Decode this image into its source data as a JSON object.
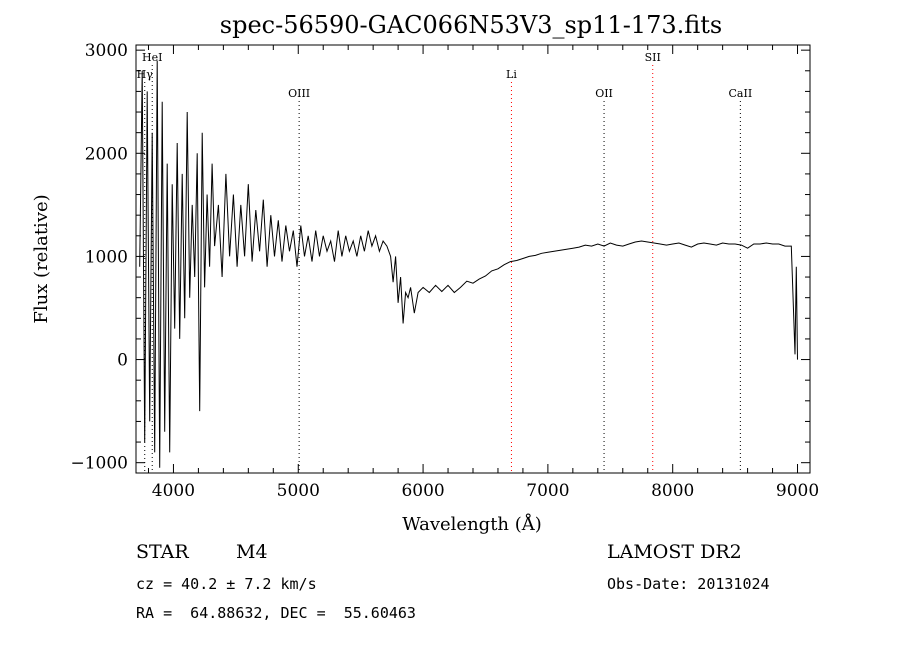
{
  "chart_data": {
    "type": "line",
    "title": "spec-56590-GAC066N53V3_sp11-173.fits",
    "xlabel": "Wavelength (Å)",
    "ylabel": "Flux (relative)",
    "xlim": [
      3700,
      9100
    ],
    "ylim": [
      -1100,
      3050
    ],
    "xticks": [
      4000,
      5000,
      6000,
      7000,
      8000,
      9000
    ],
    "yticks": [
      -1000,
      0,
      1000,
      2000,
      3000
    ],
    "xtick_labels": [
      "4000",
      "5000",
      "6000",
      "7000",
      "8000",
      "9000"
    ],
    "ytick_labels": [
      "−1000",
      "0",
      "1000",
      "2000",
      "3000"
    ],
    "grid": false,
    "series": [
      {
        "x": [
          3730,
          3750,
          3770,
          3790,
          3810,
          3830,
          3850,
          3870,
          3890,
          3910,
          3930,
          3950,
          3970,
          3990,
          4010,
          4030,
          4050,
          4070,
          4090,
          4110,
          4130,
          4150,
          4170,
          4190,
          4210,
          4230,
          4250,
          4270,
          4290,
          4310,
          4330,
          4360,
          4390,
          4420,
          4450,
          4480,
          4510,
          4540,
          4570,
          4600,
          4630,
          4660,
          4690,
          4720,
          4750,
          4780,
          4810,
          4840,
          4870,
          4900,
          4930,
          4960,
          4990,
          5020,
          5050,
          5080,
          5110,
          5140,
          5170,
          5200,
          5230,
          5260,
          5290,
          5320,
          5350,
          5380,
          5410,
          5440,
          5470,
          5500,
          5530,
          5560,
          5590,
          5620,
          5650,
          5680,
          5710,
          5740,
          5760,
          5780,
          5800,
          5820,
          5840,
          5860,
          5880,
          5900,
          5930,
          5960,
          6000,
          6050,
          6100,
          6150,
          6200,
          6250,
          6300,
          6350,
          6400,
          6450,
          6500,
          6550,
          6600,
          6650,
          6700,
          6750,
          6800,
          6850,
          6900,
          6950,
          7000,
          7050,
          7100,
          7150,
          7200,
          7250,
          7300,
          7350,
          7400,
          7450,
          7500,
          7550,
          7600,
          7650,
          7700,
          7750,
          7800,
          7850,
          7900,
          7950,
          8000,
          8050,
          8100,
          8150,
          8200,
          8250,
          8300,
          8350,
          8400,
          8450,
          8500,
          8550,
          8600,
          8650,
          8700,
          8750,
          8800,
          8850,
          8900,
          8950,
          8980,
          8990,
          9000
        ],
        "y": [
          900,
          2800,
          -800,
          2600,
          -600,
          2200,
          -900,
          2900,
          -1050,
          2500,
          -700,
          1900,
          -900,
          1700,
          300,
          2100,
          200,
          1800,
          400,
          2400,
          600,
          1500,
          800,
          2000,
          -500,
          2200,
          700,
          1600,
          900,
          1900,
          1100,
          1500,
          800,
          1800,
          1000,
          1600,
          900,
          1500,
          1000,
          1700,
          950,
          1450,
          1050,
          1550,
          900,
          1400,
          1000,
          1350,
          950,
          1300,
          1050,
          1250,
          900,
          1300,
          1000,
          1200,
          950,
          1250,
          1000,
          1200,
          1050,
          1150,
          950,
          1250,
          1000,
          1200,
          1050,
          1150,
          1000,
          1200,
          1050,
          1250,
          1100,
          1200,
          1050,
          1150,
          1100,
          1000,
          750,
          1000,
          550,
          800,
          350,
          650,
          600,
          700,
          450,
          650,
          700,
          650,
          720,
          660,
          720,
          650,
          700,
          760,
          740,
          780,
          810,
          860,
          880,
          920,
          950,
          960,
          980,
          1000,
          1010,
          1030,
          1040,
          1050,
          1060,
          1070,
          1080,
          1090,
          1110,
          1100,
          1120,
          1100,
          1130,
          1110,
          1100,
          1120,
          1140,
          1150,
          1140,
          1130,
          1120,
          1110,
          1120,
          1130,
          1110,
          1090,
          1120,
          1130,
          1120,
          1110,
          1130,
          1120,
          1120,
          1110,
          1080,
          1120,
          1120,
          1130,
          1120,
          1120,
          1100,
          1100,
          50,
          900,
          0
        ]
      }
    ],
    "line_markers": [
      {
        "label": "Hγ",
        "wavelength": 3770,
        "color": "#000000",
        "label_row": 2
      },
      {
        "label": "HeI",
        "wavelength": 3830,
        "color": "#000000",
        "label_row": 1
      },
      {
        "label": "OIII",
        "wavelength": 5007,
        "color": "#000000",
        "label_row": 3
      },
      {
        "label": "Li",
        "wavelength": 6708,
        "color": "#ff0000",
        "label_row": 2
      },
      {
        "label": "OII",
        "wavelength": 7450,
        "color": "#000000",
        "label_row": 3
      },
      {
        "label": "SII",
        "wavelength": 7840,
        "color": "#ff0000",
        "label_row": 1
      },
      {
        "label": "CaII",
        "wavelength": 8542,
        "color": "#000000",
        "label_row": 3
      }
    ]
  },
  "info": {
    "class_label": "STAR",
    "subclass": "M4",
    "survey": "LAMOST DR2",
    "cz": "cz = 40.2 ± 7.2 km/s",
    "obs_date": "Obs-Date: 20131024",
    "coords": "RA =  64.88632, DEC =  55.60463"
  }
}
